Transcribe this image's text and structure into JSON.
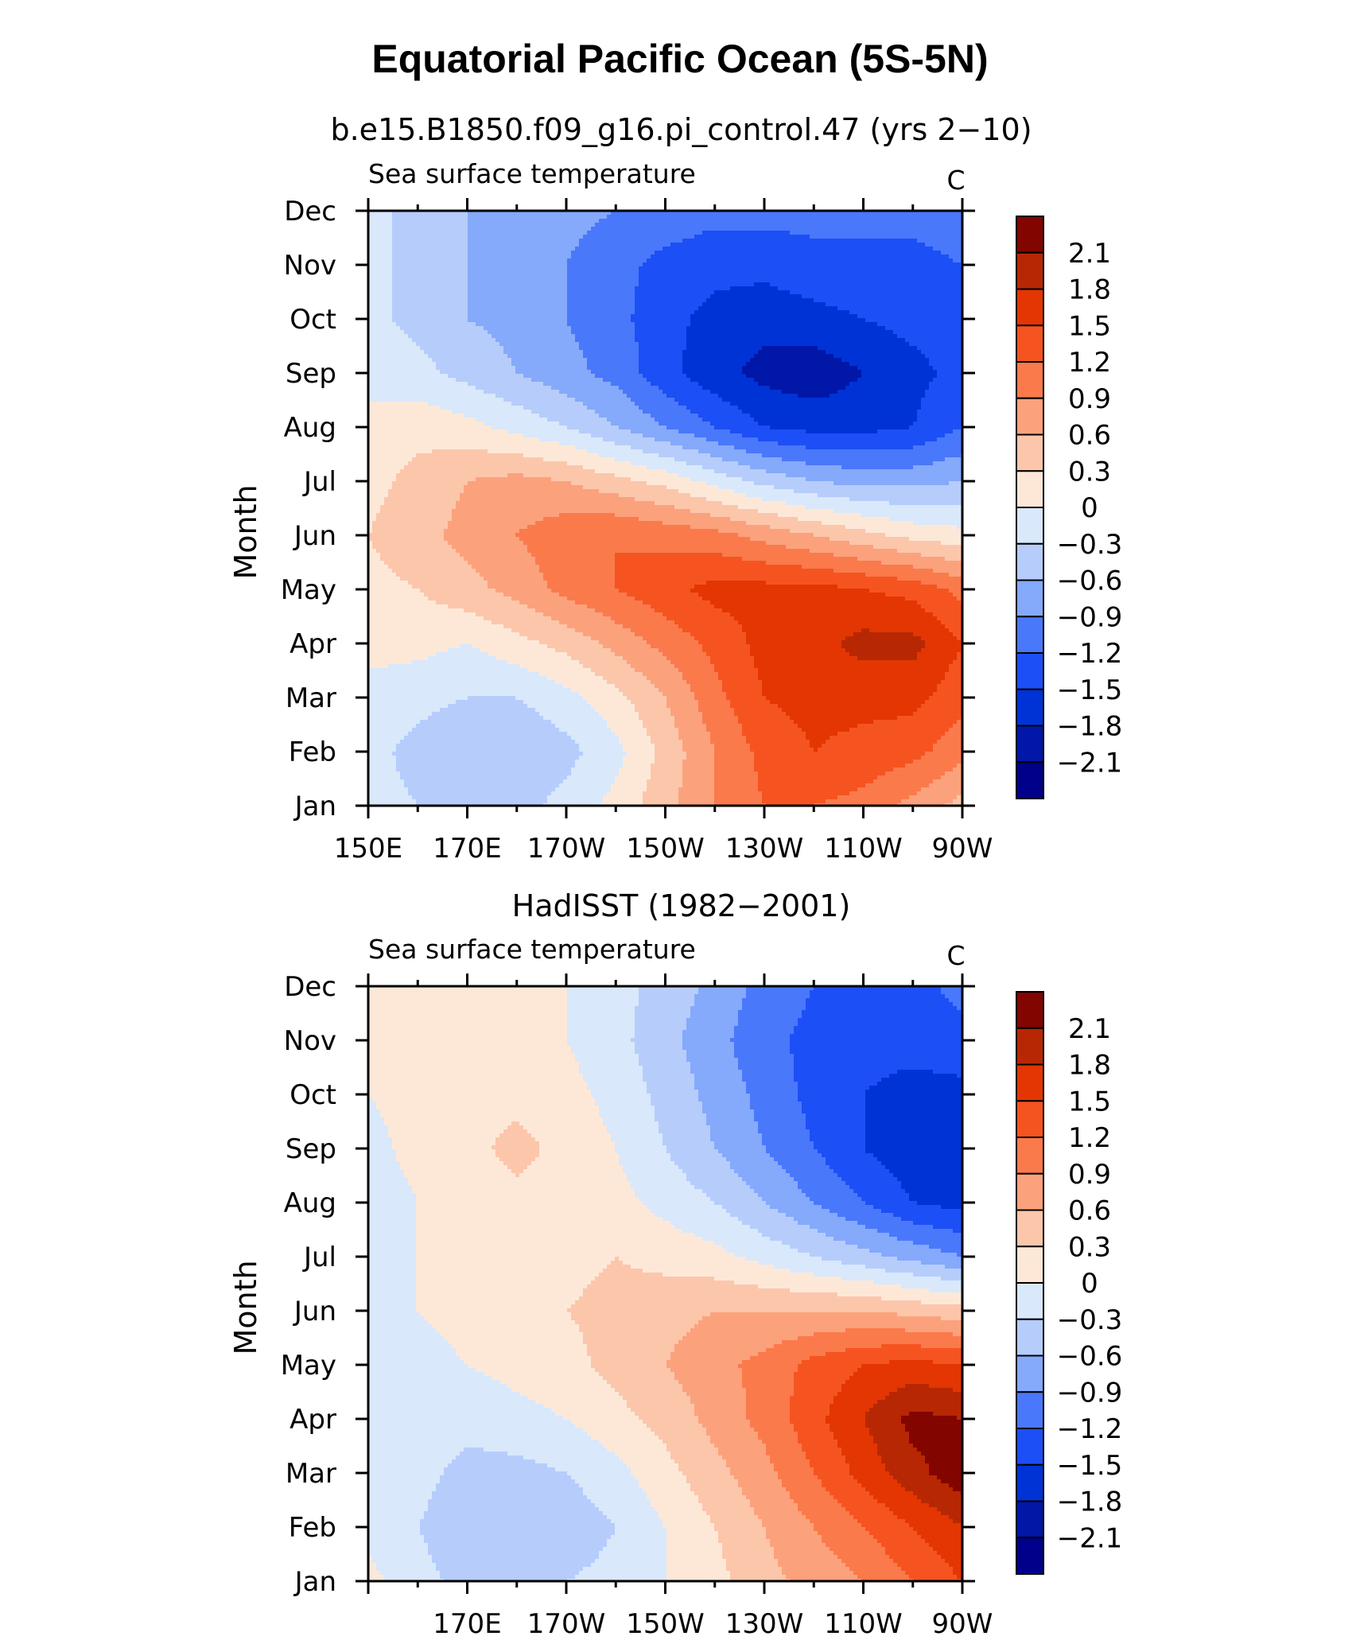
{
  "figure": {
    "title": "Equatorial Pacific Ocean (5S-5N)"
  },
  "chart_data": [
    {
      "type": "heatmap",
      "title": "b.e15.B1850.f09_g16.pi_control.47 (yrs 2−10)",
      "left_label": "Sea surface temperature",
      "right_label": "C",
      "ylabel": "Month",
      "xlabel": "",
      "x": [
        150,
        160,
        170,
        180,
        190,
        200,
        210,
        220,
        230,
        240,
        250,
        260,
        270
      ],
      "x_ticks": [
        {
          "v": 150,
          "label": "150E"
        },
        {
          "v": 170,
          "label": "170E"
        },
        {
          "v": 190,
          "label": "170W"
        },
        {
          "v": 210,
          "label": "150W"
        },
        {
          "v": 230,
          "label": "130W"
        },
        {
          "v": 250,
          "label": "110W"
        },
        {
          "v": 270,
          "label": "90W"
        }
      ],
      "y": [
        "Jan",
        "Feb",
        "Mar",
        "Apr",
        "May",
        "Jun",
        "Jul",
        "Aug",
        "Sep",
        "Oct",
        "Nov",
        "Dec"
      ],
      "z": [
        [
          -0.2,
          -0.3,
          -0.5,
          -0.4,
          -0.2,
          0.1,
          0.5,
          0.9,
          1.2,
          1.2,
          1.1,
          0.8,
          0.5
        ],
        [
          -0.2,
          -0.4,
          -0.6,
          -0.6,
          -0.4,
          -0.1,
          0.4,
          0.9,
          1.3,
          1.5,
          1.4,
          1.3,
          1.0
        ],
        [
          -0.1,
          -0.2,
          -0.3,
          -0.3,
          -0.1,
          0.2,
          0.6,
          1.1,
          1.5,
          1.6,
          1.6,
          1.6,
          1.3
        ],
        [
          0.1,
          0.1,
          0.0,
          0.2,
          0.4,
          0.7,
          1.0,
          1.3,
          1.6,
          1.7,
          1.9,
          1.9,
          1.5
        ],
        [
          0.2,
          0.3,
          0.5,
          0.7,
          1.0,
          1.2,
          1.4,
          1.6,
          1.6,
          1.6,
          1.5,
          1.4,
          1.1
        ],
        [
          0.3,
          0.5,
          0.7,
          0.9,
          1.1,
          1.2,
          1.1,
          1.0,
          0.8,
          0.6,
          0.4,
          0.2,
          0.1
        ],
        [
          0.2,
          0.4,
          0.6,
          0.7,
          0.6,
          0.4,
          0.2,
          -0.1,
          -0.4,
          -0.6,
          -0.7,
          -0.7,
          -0.6
        ],
        [
          0.1,
          0.2,
          0.1,
          -0.1,
          -0.3,
          -0.6,
          -0.9,
          -1.2,
          -1.5,
          -1.6,
          -1.6,
          -1.5,
          -1.2
        ],
        [
          -0.1,
          -0.2,
          -0.4,
          -0.6,
          -0.8,
          -1.0,
          -1.4,
          -1.7,
          -1.9,
          -2.0,
          -1.8,
          -1.6,
          -1.4
        ],
        [
          -0.2,
          -0.4,
          -0.6,
          -0.7,
          -0.9,
          -1.1,
          -1.4,
          -1.6,
          -1.7,
          -1.6,
          -1.5,
          -1.4,
          -1.3
        ],
        [
          -0.2,
          -0.4,
          -0.6,
          -0.7,
          -0.9,
          -1.1,
          -1.3,
          -1.4,
          -1.4,
          -1.3,
          -1.3,
          -1.3,
          -1.2
        ],
        [
          -0.2,
          -0.4,
          -0.6,
          -0.7,
          -0.8,
          -0.9,
          -1.0,
          -1.1,
          -1.1,
          -1.1,
          -1.1,
          -1.1,
          -1.0
        ]
      ],
      "levels": [
        -2.1,
        -1.8,
        -1.5,
        -1.2,
        -0.9,
        -0.6,
        -0.3,
        0,
        0.3,
        0.6,
        0.9,
        1.2,
        1.5,
        1.8,
        2.1
      ],
      "level_labels": [
        "2.1",
        "1.8",
        "1.5",
        "1.2",
        "0.9",
        "0.6",
        "0.3",
        "0",
        "−0.3",
        "−0.6",
        "−0.9",
        "−1.2",
        "−1.5",
        "−1.8",
        "−2.1"
      ],
      "colors": [
        "#00008b",
        "#0017a8",
        "#0033d6",
        "#1c4ff5",
        "#4a78fb",
        "#85a9fb",
        "#b6cdfb",
        "#d9e8fb",
        "#fde8d8",
        "#fcc6ab",
        "#fba27c",
        "#fa7a4c",
        "#f55420",
        "#e33603",
        "#b82703",
        "#820500"
      ]
    },
    {
      "type": "heatmap",
      "title": "HadISST (1982−2001)",
      "left_label": "Sea surface temperature",
      "right_label": "C",
      "ylabel": "Month",
      "xlabel": "",
      "x": [
        150,
        160,
        170,
        180,
        190,
        200,
        210,
        220,
        230,
        240,
        250,
        260,
        270
      ],
      "x_ticks": [
        {
          "v": 170,
          "label": "170E"
        },
        {
          "v": 190,
          "label": "170W"
        },
        {
          "v": 210,
          "label": "150W"
        },
        {
          "v": 230,
          "label": "130W"
        },
        {
          "v": 250,
          "label": "110W"
        },
        {
          "v": 270,
          "label": "90W"
        }
      ],
      "y": [
        "Jan",
        "Feb",
        "Mar",
        "Apr",
        "May",
        "Jun",
        "Jul",
        "Aug",
        "Sep",
        "Oct",
        "Nov",
        "Dec"
      ],
      "z": [
        [
          0.1,
          -0.2,
          -0.4,
          -0.4,
          -0.3,
          -0.2,
          0.0,
          0.2,
          0.5,
          0.7,
          0.9,
          1.2,
          1.5
        ],
        [
          -0.1,
          -0.3,
          -0.5,
          -0.5,
          -0.5,
          -0.3,
          0.0,
          0.3,
          0.6,
          0.9,
          1.2,
          1.5,
          1.8
        ],
        [
          -0.1,
          -0.2,
          -0.4,
          -0.4,
          -0.3,
          -0.1,
          0.2,
          0.5,
          0.8,
          1.2,
          1.6,
          2.0,
          2.3
        ],
        [
          -0.1,
          -0.1,
          -0.2,
          -0.1,
          0.0,
          0.2,
          0.4,
          0.7,
          1.0,
          1.4,
          1.8,
          2.2,
          2.1
        ],
        [
          -0.1,
          -0.1,
          0.0,
          0.1,
          0.2,
          0.4,
          0.6,
          0.8,
          1.0,
          1.3,
          1.5,
          1.6,
          1.5
        ],
        [
          -0.1,
          0.0,
          0.1,
          0.2,
          0.3,
          0.4,
          0.5,
          0.6,
          0.6,
          0.6,
          0.6,
          0.5,
          0.4
        ],
        [
          -0.1,
          0.0,
          0.1,
          0.2,
          0.2,
          0.3,
          0.2,
          0.1,
          -0.1,
          -0.3,
          -0.5,
          -0.7,
          -0.9
        ],
        [
          -0.2,
          0.0,
          0.1,
          0.2,
          0.2,
          0.1,
          -0.1,
          -0.3,
          -0.6,
          -0.9,
          -1.2,
          -1.5,
          -1.6
        ],
        [
          -0.1,
          0.1,
          0.2,
          0.4,
          0.2,
          0.0,
          -0.3,
          -0.6,
          -0.9,
          -1.2,
          -1.5,
          -1.7,
          -1.7
        ],
        [
          0.0,
          0.1,
          0.2,
          0.2,
          0.1,
          -0.1,
          -0.4,
          -0.7,
          -1.0,
          -1.3,
          -1.5,
          -1.6,
          -1.6
        ],
        [
          0.1,
          0.1,
          0.1,
          0.1,
          0.0,
          -0.2,
          -0.5,
          -0.8,
          -1.1,
          -1.3,
          -1.4,
          -1.4,
          -1.3
        ],
        [
          0.1,
          0.1,
          0.1,
          0.1,
          0.0,
          -0.2,
          -0.4,
          -0.7,
          -1.0,
          -1.2,
          -1.3,
          -1.3,
          -1.1
        ]
      ],
      "levels": [
        -2.1,
        -1.8,
        -1.5,
        -1.2,
        -0.9,
        -0.6,
        -0.3,
        0,
        0.3,
        0.6,
        0.9,
        1.2,
        1.5,
        1.8,
        2.1
      ],
      "level_labels": [
        "2.1",
        "1.8",
        "1.5",
        "1.2",
        "0.9",
        "0.6",
        "0.3",
        "0",
        "−0.3",
        "−0.6",
        "−0.9",
        "−1.2",
        "−1.5",
        "−1.8",
        "−2.1"
      ],
      "colors": [
        "#00008b",
        "#0017a8",
        "#0033d6",
        "#1c4ff5",
        "#4a78fb",
        "#85a9fb",
        "#b6cdfb",
        "#d9e8fb",
        "#fde8d8",
        "#fcc6ab",
        "#fba27c",
        "#fa7a4c",
        "#f55420",
        "#e33603",
        "#b82703",
        "#820500"
      ]
    }
  ]
}
